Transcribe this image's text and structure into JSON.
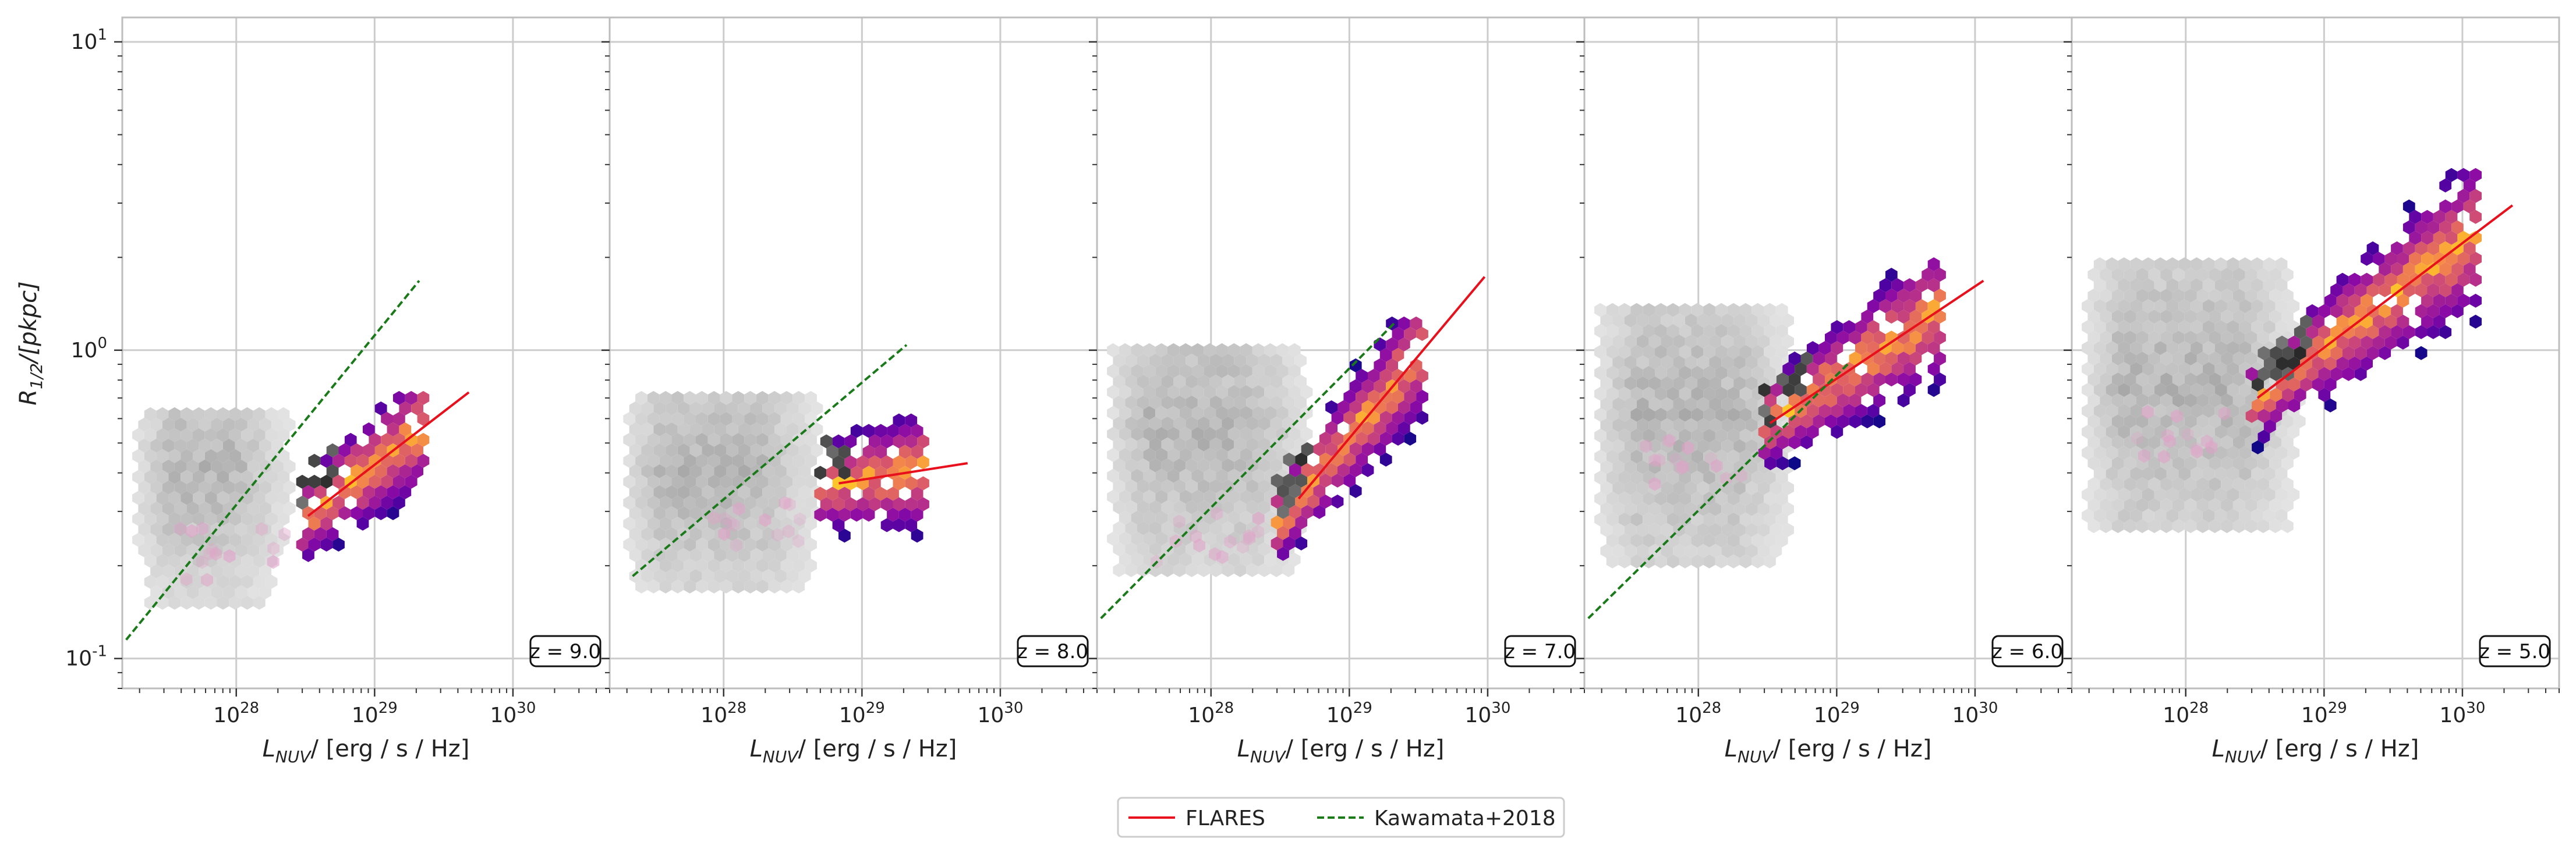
{
  "figure": {
    "ylabel_sym": "R",
    "ylabel_sub": "1/2",
    "ylabel_unit": "/[pkpc]",
    "xlabel_sym": "L",
    "xlabel_sub": "NUV",
    "xlabel_unit": "/ [erg / s / Hz]"
  },
  "legend": {
    "flares": "FLARES",
    "kawamata": "Kawamata+2018"
  },
  "colors": {
    "flares_line": "#e8101c",
    "kawamata_line": "#1a7a1a",
    "grid": "#cccccc",
    "frame": "#bdbdbd",
    "background_hex": "grey-scale",
    "weighted_hex": "plasma"
  },
  "chart_data": [
    {
      "type": "hexbin",
      "panel_label": "z = 9.0",
      "xscale": "log",
      "yscale": "log",
      "xlim": [
        1.5e+27,
        5e+30
      ],
      "ylim": [
        0.08,
        12
      ],
      "x_ticks": [
        "10^28",
        "10^29",
        "10^30"
      ],
      "y_ticks": [
        "10^-1",
        "10^0",
        "10^1"
      ],
      "grid": true,
      "series": [
        {
          "name": "FLARES",
          "style": "solid",
          "x": [
            3.3e+28,
            4.8e+29
          ],
          "y": [
            0.29,
            0.73
          ]
        },
        {
          "name": "Kawamata+2018",
          "style": "dashed",
          "x": [
            1.6e+27,
            2.1e+29
          ],
          "y": [
            0.115,
            1.68
          ]
        }
      ],
      "background_hexbin": {
        "x_range": [
          1.6e+27,
          3e+28
        ],
        "y_range": [
          0.15,
          0.62
        ],
        "peak_y": 0.4
      },
      "weighted_hexbin": {
        "x_range": [
          3e+28,
          2.3e+29
        ],
        "y_range": [
          0.2,
          0.7
        ]
      }
    },
    {
      "type": "hexbin",
      "panel_label": "z = 8.0",
      "xscale": "log",
      "yscale": "log",
      "xlim": [
        1.5e+27,
        5e+30
      ],
      "ylim": [
        0.08,
        12
      ],
      "x_ticks": [
        "10^28",
        "10^29",
        "10^30"
      ],
      "y_ticks": [],
      "grid": true,
      "series": [
        {
          "name": "FLARES",
          "style": "solid",
          "x": [
            6.8e+28,
            5.8e+29
          ],
          "y": [
            0.37,
            0.43
          ]
        },
        {
          "name": "Kawamata+2018",
          "style": "dashed",
          "x": [
            2.2e+27,
            2.1e+29
          ],
          "y": [
            0.185,
            1.04
          ]
        }
      ],
      "background_hexbin": {
        "x_range": [
          1.7e+27,
          6e+28
        ],
        "y_range": [
          0.16,
          0.7
        ],
        "peak_y": 0.4
      },
      "weighted_hexbin": {
        "x_range": [
          5e+28,
          3e+29
        ],
        "y_range": [
          0.24,
          0.64
        ]
      }
    },
    {
      "type": "hexbin",
      "panel_label": "z = 7.0",
      "xscale": "log",
      "yscale": "log",
      "xlim": [
        1.5e+27,
        5e+30
      ],
      "ylim": [
        0.08,
        12
      ],
      "x_ticks": [
        "10^28",
        "10^29",
        "10^30"
      ],
      "y_ticks": [],
      "grid": true,
      "series": [
        {
          "name": "FLARES",
          "style": "solid",
          "x": [
            4.3e+28,
            9.5e+29
          ],
          "y": [
            0.33,
            1.73
          ]
        },
        {
          "name": "Kawamata+2018",
          "style": "dashed",
          "x": [
            1.6e+27,
            2.1e+29
          ],
          "y": [
            0.135,
            1.22
          ]
        }
      ],
      "background_hexbin": {
        "x_range": [
          1.6e+27,
          6e+28
        ],
        "y_range": [
          0.18,
          1.0
        ],
        "peak_y": 0.55
      },
      "weighted_hexbin": {
        "x_range": [
          3e+28,
          3.7e+29
        ],
        "y_range": [
          0.17,
          1.32
        ]
      }
    },
    {
      "type": "hexbin",
      "panel_label": "z = 6.0",
      "xscale": "log",
      "yscale": "log",
      "xlim": [
        1.5e+27,
        5e+30
      ],
      "ylim": [
        0.08,
        12
      ],
      "x_ticks": [
        "10^28",
        "10^29",
        "10^30"
      ],
      "y_ticks": [],
      "grid": true,
      "series": [
        {
          "name": "FLARES",
          "style": "solid",
          "x": [
            3.3e+28,
            1.15e+30
          ],
          "y": [
            0.58,
            1.68
          ]
        },
        {
          "name": "Kawamata+2018",
          "style": "dashed",
          "x": [
            1.6e+27,
            1.2e+29
          ],
          "y": [
            0.135,
            0.9
          ]
        }
      ],
      "background_hexbin": {
        "x_range": [
          1.6e+27,
          6e+28
        ],
        "y_range": [
          0.2,
          1.35
        ],
        "peak_y": 0.6
      },
      "weighted_hexbin": {
        "x_range": [
          3e+28,
          6e+29
        ],
        "y_range": [
          0.25,
          1.9
        ]
      }
    },
    {
      "type": "hexbin",
      "panel_label": "z = 5.0",
      "xscale": "log",
      "yscale": "log",
      "xlim": [
        1.5e+27,
        5e+30
      ],
      "ylim": [
        0.08,
        12
      ],
      "x_ticks": [
        "10^28",
        "10^29",
        "10^30"
      ],
      "y_ticks": [],
      "grid": true,
      "series": [
        {
          "name": "FLARES",
          "style": "solid",
          "x": [
            3.3e+28,
            2.3e+30
          ],
          "y": [
            0.7,
            2.95
          ]
        }
      ],
      "background_hexbin": {
        "x_range": [
          1.6e+27,
          8e+28
        ],
        "y_range": [
          0.25,
          1.9
        ],
        "peak_y": 0.75
      },
      "weighted_hexbin": {
        "x_range": [
          3e+28,
          1.3e+30
        ],
        "y_range": [
          0.3,
          4.0
        ]
      }
    }
  ]
}
